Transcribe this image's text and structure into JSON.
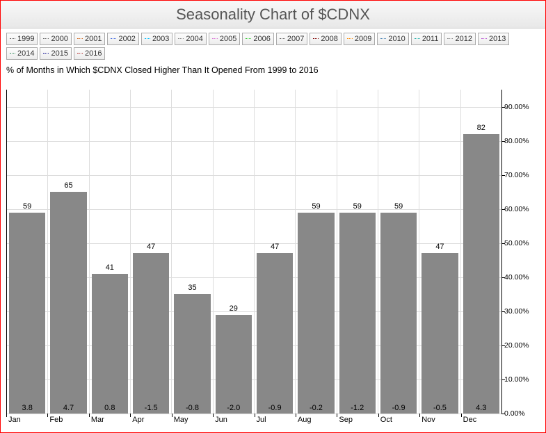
{
  "title": "Seasonality Chart of $CDNX",
  "subtitle": "% of Months in Which $CDNX Closed Higher Than It Opened From 1999 to 2016",
  "legend": {
    "items": [
      {
        "label": "1999",
        "color": "#666666"
      },
      {
        "label": "2000",
        "color": "#666666"
      },
      {
        "label": "2001",
        "color": "#d2691e"
      },
      {
        "label": "2002",
        "color": "#4169e1"
      },
      {
        "label": "2003",
        "color": "#00bfff"
      },
      {
        "label": "2004",
        "color": "#888888"
      },
      {
        "label": "2005",
        "color": "#da70d6"
      },
      {
        "label": "2006",
        "color": "#32cd32"
      },
      {
        "label": "2007",
        "color": "#666666"
      },
      {
        "label": "2008",
        "color": "#800000"
      },
      {
        "label": "2009",
        "color": "#ff8c00"
      },
      {
        "label": "2010",
        "color": "#4682b4"
      },
      {
        "label": "2011",
        "color": "#20b2aa"
      },
      {
        "label": "2012",
        "color": "#888888"
      },
      {
        "label": "2013",
        "color": "#ba55d3"
      },
      {
        "label": "2014",
        "color": "#2e8b57"
      },
      {
        "label": "2015",
        "color": "#00008b"
      },
      {
        "label": "2016",
        "color": "#b22222"
      }
    ]
  },
  "chart": {
    "type": "bar",
    "bar_color": "#888888",
    "background_color": "#ffffff",
    "grid_color": "#dddddd",
    "axis_color": "#000000",
    "y": {
      "min": 0,
      "max": 95,
      "ticks": [
        0,
        10,
        20,
        30,
        40,
        50,
        60,
        70,
        80,
        90
      ],
      "tick_labels": [
        "0.00%",
        "10.00%",
        "20.00%",
        "30.00%",
        "40.00%",
        "50.00%",
        "60.00%",
        "70.00%",
        "80.00%",
        "90.00%"
      ]
    },
    "categories": [
      "Jan",
      "Feb",
      "Mar",
      "Apr",
      "May",
      "Jun",
      "Jul",
      "Aug",
      "Sep",
      "Oct",
      "Nov",
      "Dec"
    ],
    "values": [
      59,
      65,
      41,
      47,
      35,
      29,
      47,
      59,
      59,
      59,
      47,
      82
    ],
    "value_labels": [
      "59",
      "65",
      "41",
      "47",
      "35",
      "29",
      "47",
      "59",
      "59",
      "59",
      "47",
      "82"
    ],
    "secondary_labels": [
      "3.8",
      "4.7",
      "0.8",
      "-1.5",
      "-0.8",
      "-2.0",
      "-0.9",
      "-0.2",
      "-1.2",
      "-0.9",
      "-0.5",
      "4.3"
    ],
    "label_fontsize": 11,
    "title_fontsize": 22
  }
}
